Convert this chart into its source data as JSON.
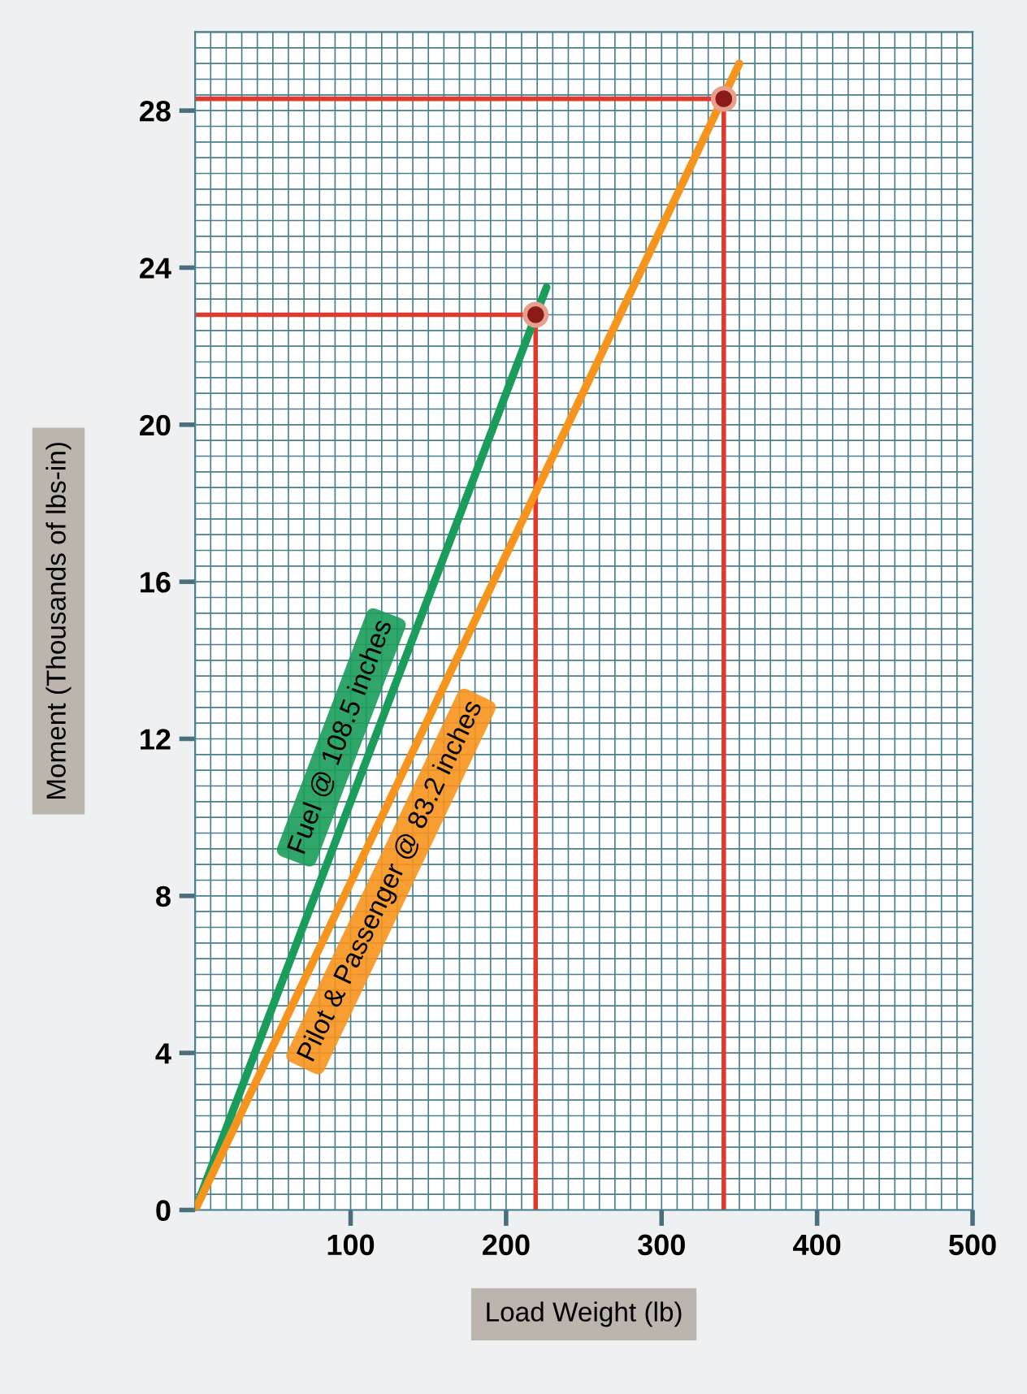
{
  "chart_data": {
    "type": "line",
    "xlabel": "Load Weight (lb)",
    "ylabel": "Moment (Thousands of lbs-in)",
    "xlim": [
      0,
      500
    ],
    "ylim": [
      0,
      30
    ],
    "xticks": [
      100,
      200,
      300,
      400,
      500
    ],
    "yticks": [
      0,
      4,
      8,
      12,
      16,
      20,
      24,
      28
    ],
    "grid": true,
    "legend": false,
    "series": [
      {
        "name": "Fuel @ 108.5 inches",
        "color": "#1a9c5a",
        "x": [
          0,
          226
        ],
        "values": [
          0,
          23.5
        ]
      },
      {
        "name": "Pilot & Passenger @ 83.2 inches",
        "color": "#f7941d",
        "x": [
          0,
          350
        ],
        "values": [
          0,
          29.2
        ]
      },
      {
        "type": "line",
        "color": "#e03a2f",
        "x": [
          0,
          219,
          219
        ],
        "values": [
          22.8,
          22.8,
          0
        ]
      },
      {
        "type": "line",
        "color": "#e03a2f",
        "x": [
          0,
          340,
          340
        ],
        "values": [
          28.3,
          28.3,
          0
        ]
      },
      {
        "type": "scatter",
        "color": "#8b1a1a",
        "x": [
          219,
          340
        ],
        "values": [
          22.8,
          28.3
        ]
      }
    ]
  }
}
